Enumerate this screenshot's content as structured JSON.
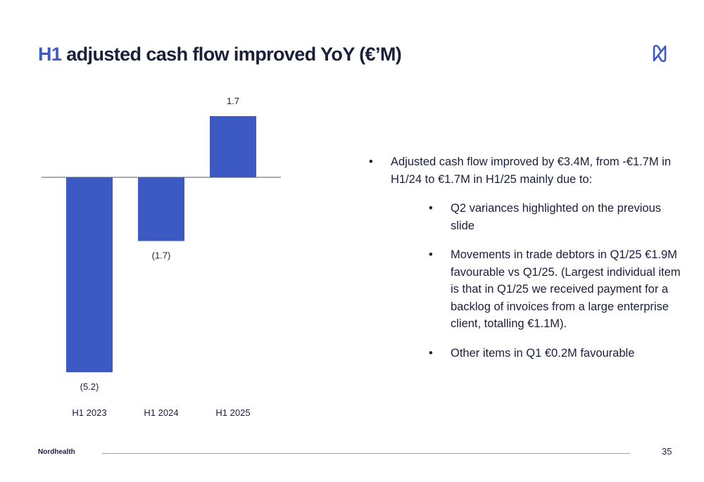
{
  "slide": {
    "title_accent": "H1",
    "title_rest": "adjusted cash flow improved YoY (€’M)",
    "brand": "Nordhealth",
    "page_number": "35",
    "logo_icon": "nordhealth-logo-icon",
    "accent_color": "#3d59c4"
  },
  "bullets": {
    "main": "Adjusted cash flow improved by €3.4M, from -€1.7M in H1/24 to €1.7M in H1/25 mainly due to:",
    "sub": [
      "Q2 variances highlighted on the previous slide",
      "Movements in trade debtors in Q1/25 €1.9M favourable vs Q1/25. (Largest individual item is that in Q1/25 we received payment for a backlog of invoices from a large enterprise client, totalling €1.1M).",
      "Other items in Q1 €0.2M favourable"
    ]
  },
  "chart_data": {
    "type": "bar",
    "categories": [
      "H1 2023",
      "H1 2024",
      "H1 2025"
    ],
    "values": [
      -5.2,
      -1.7,
      1.7
    ],
    "data_labels": [
      "(5.2)",
      "(1.7)",
      "1.7"
    ],
    "title": "",
    "xlabel": "",
    "ylabel": "",
    "ylim": [
      -5.2,
      1.7
    ],
    "grid": false,
    "bar_color": "#3d59c4",
    "zero_line_color": "#555a66"
  }
}
